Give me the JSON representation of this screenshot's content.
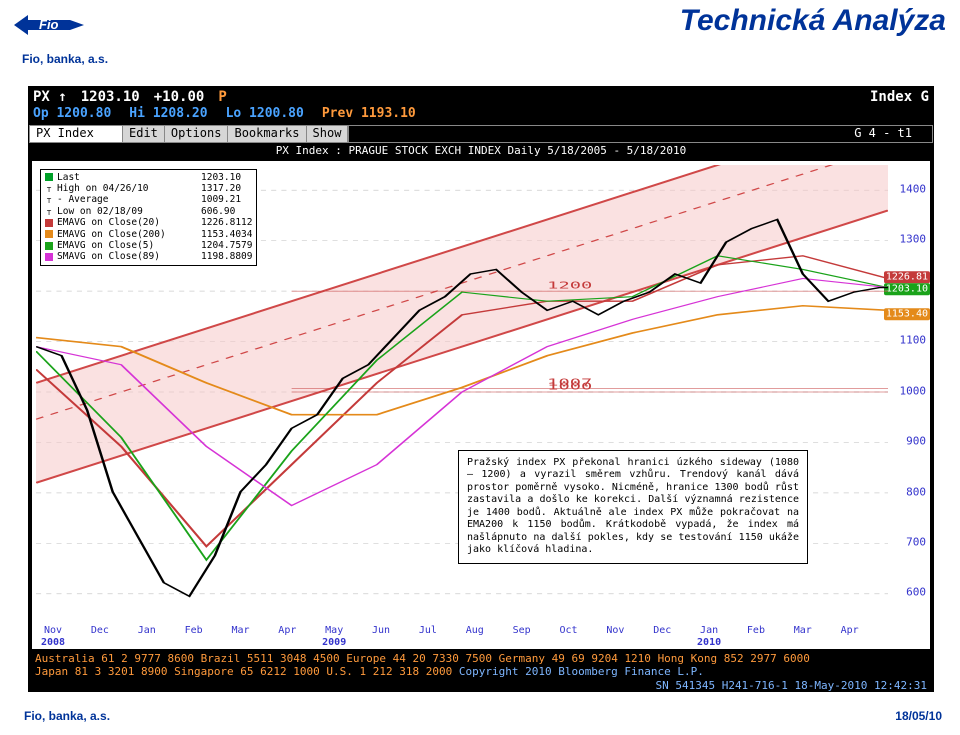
{
  "page": {
    "title": "Technická Analýza",
    "subtitle": "Fio, banka, a.s.",
    "footer_left": "Fio, banka, a.s.",
    "footer_right": "18/05/10"
  },
  "logo": {
    "text": "Fio",
    "bg": "#003399",
    "fg": "#ffffff",
    "arrow_color": "#009a3d"
  },
  "terminal": {
    "symbol": "PX ↑",
    "last": "1203.10",
    "change": "+10.00",
    "currency_flag": "P",
    "index_type": "Index G",
    "sub": {
      "open": "Op 1200.80",
      "high": "Hi 1208.20",
      "low": "Lo 1200.80",
      "prev": "Prev 1193.10"
    },
    "menu": {
      "ticker": "PX Index",
      "items": [
        "Edit",
        "Options",
        "Bookmarks",
        "Show"
      ],
      "right": "G 4 - t1"
    },
    "index_label": "PX Index  :  PRAGUE STOCK EXCH INDEX    Daily   5/18/2005 - 5/18/2010"
  },
  "chart": {
    "ylim": [
      550,
      1450
    ],
    "yticks": [
      600,
      700,
      800,
      900,
      1000,
      1100,
      1200,
      1300,
      1400
    ],
    "background": "#ffffff",
    "grid_color": "#cccccc",
    "xaxis": {
      "months": [
        "Nov",
        "Dec",
        "Jan",
        "Feb",
        "Mar",
        "Apr",
        "May",
        "Jun",
        "Jul",
        "Aug",
        "Sep",
        "Oct",
        "Nov",
        "Dec",
        "Jan",
        "Feb",
        "Mar",
        "Apr"
      ],
      "month_pct": [
        2,
        7.5,
        13,
        18.5,
        24,
        29.5,
        35,
        40.5,
        46,
        51.5,
        57,
        62.5,
        68,
        73.5,
        79,
        84.5,
        90,
        95.5
      ],
      "years": [
        {
          "label": "2008",
          "pct": 2
        },
        {
          "label": "2009",
          "pct": 35
        },
        {
          "label": "2010",
          "pct": 79
        }
      ]
    },
    "channel": {
      "fill": "#f6c9c9",
      "border": "#d04848",
      "lower": [
        [
          0,
          70
        ],
        [
          100,
          10
        ]
      ],
      "upper": [
        [
          0,
          48
        ],
        [
          100,
          -12
        ]
      ],
      "inner": [
        [
          0,
          56
        ],
        [
          100,
          -4
        ]
      ]
    },
    "price_series": {
      "color": "#000000",
      "width": 1.2,
      "points": [
        [
          0,
          40
        ],
        [
          3,
          42
        ],
        [
          6,
          54
        ],
        [
          9,
          72
        ],
        [
          12,
          82
        ],
        [
          15,
          92
        ],
        [
          18,
          95
        ],
        [
          21,
          86
        ],
        [
          24,
          72
        ],
        [
          27,
          66
        ],
        [
          30,
          58
        ],
        [
          33,
          55
        ],
        [
          36,
          47
        ],
        [
          39,
          44
        ],
        [
          42,
          38
        ],
        [
          45,
          32
        ],
        [
          48,
          29
        ],
        [
          51,
          24
        ],
        [
          54,
          23
        ],
        [
          57,
          28
        ],
        [
          60,
          32
        ],
        [
          63,
          30
        ],
        [
          66,
          33
        ],
        [
          69,
          30
        ],
        [
          72,
          28
        ],
        [
          75,
          24
        ],
        [
          78,
          26
        ],
        [
          81,
          17
        ],
        [
          84,
          14
        ],
        [
          87,
          12
        ],
        [
          90,
          24
        ],
        [
          93,
          30
        ],
        [
          96,
          28
        ],
        [
          99,
          27
        ],
        [
          100,
          27
        ]
      ]
    },
    "ma_series": [
      {
        "name": "EMAVG(20)",
        "color": "#c43a3a",
        "width": 1.2,
        "points": [
          [
            0,
            45
          ],
          [
            10,
            62
          ],
          [
            20,
            84
          ],
          [
            30,
            66
          ],
          [
            40,
            48
          ],
          [
            50,
            33
          ],
          [
            60,
            30
          ],
          [
            70,
            30
          ],
          [
            80,
            22
          ],
          [
            90,
            20
          ],
          [
            100,
            25
          ]
        ]
      },
      {
        "name": "EMAVG(200)",
        "color": "#e48a1a",
        "width": 1.4,
        "points": [
          [
            0,
            38
          ],
          [
            10,
            40
          ],
          [
            20,
            48
          ],
          [
            30,
            55
          ],
          [
            40,
            55
          ],
          [
            50,
            49
          ],
          [
            60,
            42
          ],
          [
            70,
            37
          ],
          [
            80,
            33
          ],
          [
            90,
            31
          ],
          [
            100,
            32
          ]
        ]
      },
      {
        "name": "EMAVG(5)",
        "color": "#1aa31a",
        "width": 1.0,
        "points": [
          [
            0,
            41
          ],
          [
            10,
            60
          ],
          [
            20,
            87
          ],
          [
            30,
            63
          ],
          [
            40,
            43
          ],
          [
            50,
            28
          ],
          [
            60,
            30
          ],
          [
            70,
            29
          ],
          [
            80,
            20
          ],
          [
            90,
            23
          ],
          [
            100,
            27
          ]
        ]
      },
      {
        "name": "SMAVG(89)",
        "color": "#d633d6",
        "width": 1.0,
        "points": [
          [
            0,
            40
          ],
          [
            10,
            44
          ],
          [
            20,
            62
          ],
          [
            30,
            75
          ],
          [
            40,
            66
          ],
          [
            50,
            50
          ],
          [
            60,
            40
          ],
          [
            70,
            34
          ],
          [
            80,
            29
          ],
          [
            90,
            25
          ],
          [
            100,
            27
          ]
        ]
      }
    ],
    "right_badges": [
      {
        "text": "1226.81",
        "y_val": 1226.81,
        "bg": "#c43a3a"
      },
      {
        "text": "1203.10",
        "y_val": 1203.1,
        "bg": "#1aa31a"
      },
      {
        "text": "1153.40",
        "y_val": 1153.4,
        "bg": "#e48a1a"
      }
    ],
    "hmarks": [
      {
        "y_val": 1200,
        "text": "1200"
      },
      {
        "y_val": 1007,
        "text": "1007"
      },
      {
        "y_val": 1000,
        "text": "1000"
      }
    ]
  },
  "legend": {
    "rows": [
      {
        "sw": "#00a028",
        "name": "Last",
        "val": "1203.10"
      },
      {
        "sw": null,
        "name": "High on 04/26/10",
        "val": "1317.20"
      },
      {
        "sw": null,
        "name": "- Average",
        "val": "1009.21"
      },
      {
        "sw": null,
        "name": "Low on 02/18/09",
        "val": "606.90"
      },
      {
        "sw": "#c43a3a",
        "name": "EMAVG on Close(20)",
        "val": "1226.8112"
      },
      {
        "sw": "#e48a1a",
        "name": "EMAVG on Close(200)",
        "val": "1153.4034"
      },
      {
        "sw": "#1aa31a",
        "name": "EMAVG on Close(5)",
        "val": "1204.7579"
      },
      {
        "sw": "#d633d6",
        "name": "SMAVG on Close(89)",
        "val": "1198.8809"
      }
    ]
  },
  "callout": {
    "text": "Pražský index PX překonal hranici úzkého sideway (1080 – 1200) a vyrazil směrem vzhůru. Trendový kanál dává prostor poměrně vysoko. Nicméně, hranice 1300 bodů růst zastavila a došlo ke korekci. Další významná rezistence je 1400 bodů. Aktuálně ale index PX může pokračovat na EMA200 k 1150 bodům. Krátkodobě vypadá, že index má našlápnuto na další pokles, kdy se testování 1150 ukáže jako klíčová hladina."
  },
  "strip": {
    "line1_parts": [
      {
        "c": "or",
        "t": "Australia 61 2 9777 8600 "
      },
      {
        "c": "or",
        "t": "Brazil 5511 3048 4500 "
      },
      {
        "c": "or",
        "t": "Europe 44 20 7330 7500 "
      },
      {
        "c": "or",
        "t": "Germany 49 69 9204 1210 "
      },
      {
        "c": "or",
        "t": "Hong Kong 852 2977 6000"
      }
    ],
    "line2_parts": [
      {
        "c": "or",
        "t": "Japan 81 3 3201 8900     "
      },
      {
        "c": "or",
        "t": "Singapore 65 6212 1000     "
      },
      {
        "c": "or",
        "t": "U.S. 1 212 318 2000     "
      },
      {
        "c": "bl",
        "t": "Copyright 2010 Bloomberg Finance L.P."
      }
    ],
    "line3": "SN 541345 H241-716-1 18-May-2010 12:42:31"
  }
}
